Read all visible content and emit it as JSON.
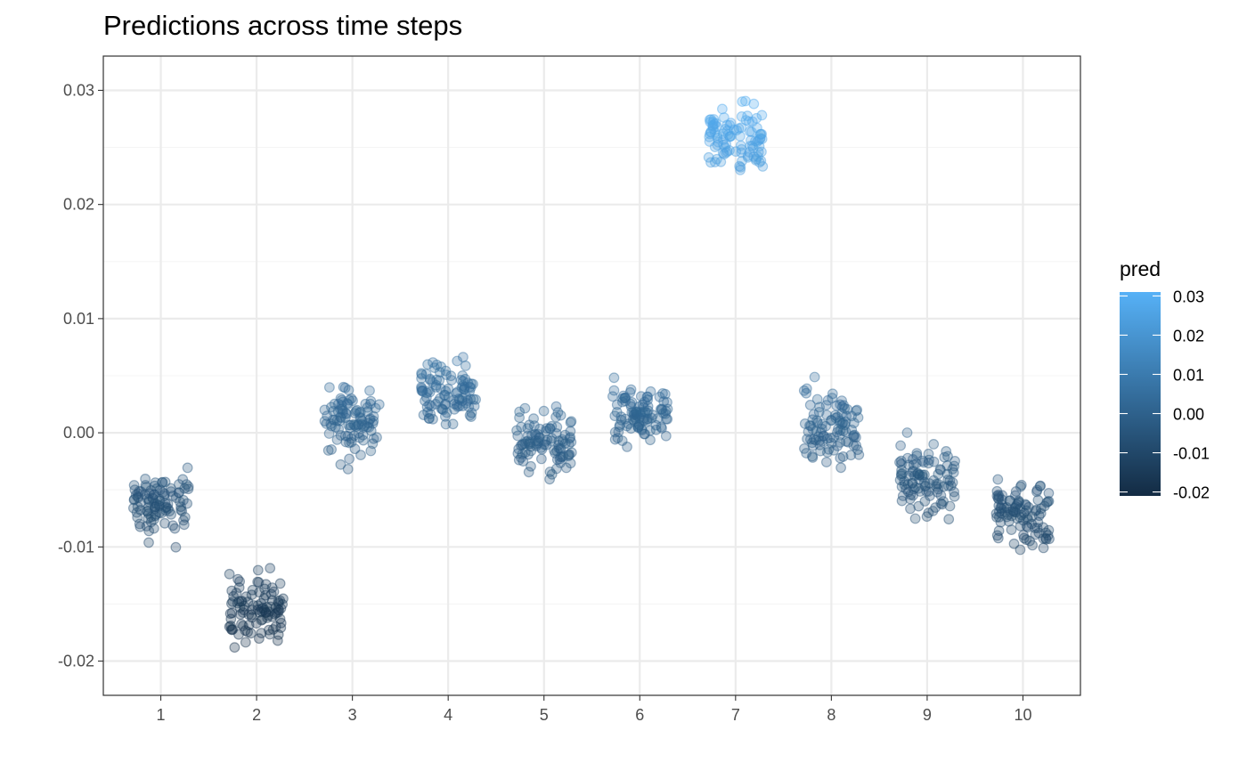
{
  "chart_data": {
    "type": "scatter",
    "title": "Predictions across time steps",
    "xlabel": "",
    "ylabel": "",
    "x_categories": [
      "1",
      "2",
      "3",
      "4",
      "5",
      "6",
      "7",
      "8",
      "9",
      "10"
    ],
    "y_ticks": [
      -0.02,
      -0.01,
      0.0,
      0.01,
      0.02,
      0.03
    ],
    "y_tick_labels": [
      "-0.02",
      "-0.01",
      "0.00",
      "0.01",
      "0.02",
      "0.03"
    ],
    "ylim": [
      -0.023,
      0.033
    ],
    "grid": true,
    "jittered_points": true,
    "point_count_per_group": 100,
    "groups": [
      {
        "x": "1",
        "center": -0.0063,
        "min": -0.0108,
        "max": -0.0015
      },
      {
        "x": "2",
        "center": -0.0155,
        "min": -0.0202,
        "max": -0.0105
      },
      {
        "x": "3",
        "center": 0.001,
        "min": -0.0037,
        "max": 0.0058
      },
      {
        "x": "4",
        "center": 0.0035,
        "min": -0.0015,
        "max": 0.0082
      },
      {
        "x": "5",
        "center": -0.001,
        "min": -0.0055,
        "max": 0.0033
      },
      {
        "x": "6",
        "center": 0.0014,
        "min": -0.0028,
        "max": 0.0055
      },
      {
        "x": "7",
        "center": 0.0258,
        "min": 0.0213,
        "max": 0.0305
      },
      {
        "x": "8",
        "center": 0.0005,
        "min": -0.0045,
        "max": 0.0053
      },
      {
        "x": "9",
        "center": -0.004,
        "min": -0.0086,
        "max": 0.0008
      },
      {
        "x": "10",
        "center": -0.0073,
        "min": -0.0122,
        "max": -0.0025
      }
    ],
    "legend": {
      "title": "pred",
      "position": "right",
      "ticks": [
        -0.02,
        -0.01,
        0.0,
        0.01,
        0.02,
        0.03
      ],
      "tick_labels": [
        "-0.02",
        "-0.01",
        "0.00",
        "0.01",
        "0.02",
        "0.03"
      ],
      "range": [
        -0.021,
        0.031
      ],
      "color_low": "#132B43",
      "color_high": "#56B1F7"
    },
    "colors": {
      "panel_border": "#333333",
      "grid_major": "#ebebeb",
      "grid_minor": "#f5f5f5",
      "point_alpha": 0.3
    }
  }
}
